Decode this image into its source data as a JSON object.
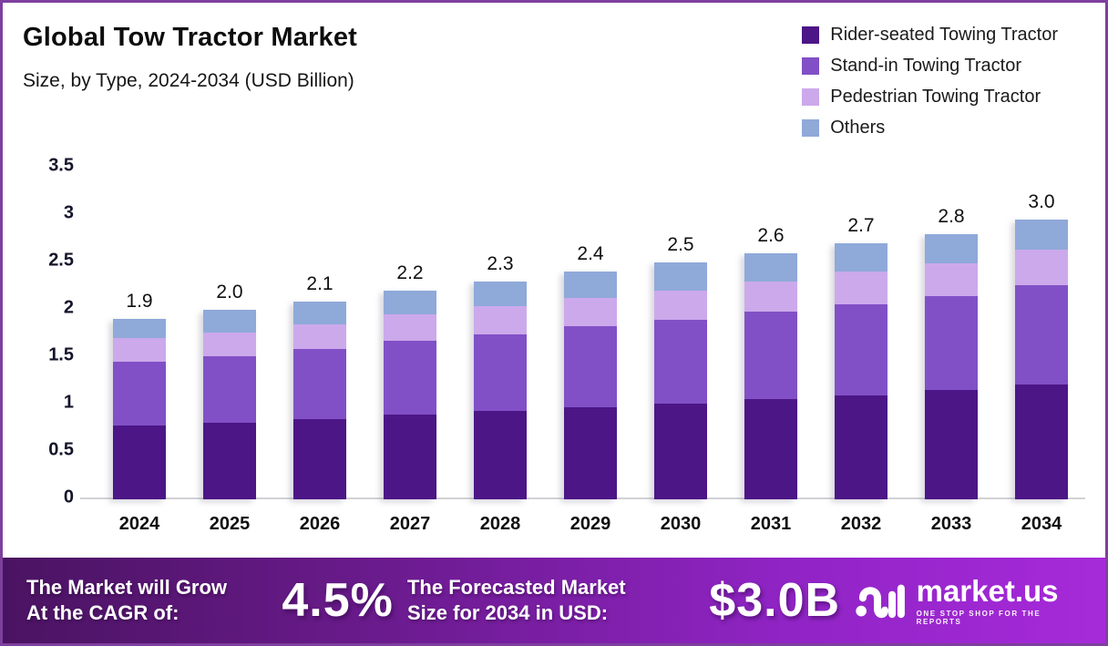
{
  "chart_data": {
    "type": "bar",
    "stacked": true,
    "title": "Global Tow Tractor Market",
    "subtitle": "Size, by Type, 2024-2034 (USD Billion)",
    "categories": [
      "2024",
      "2025",
      "2026",
      "2027",
      "2028",
      "2029",
      "2030",
      "2031",
      "2032",
      "2033",
      "2034"
    ],
    "series": [
      {
        "key": "rider-seated",
        "name": "Rider-seated Towing Tractor",
        "color": "#4C1687",
        "values": [
          0.78,
          0.81,
          0.85,
          0.89,
          0.93,
          0.97,
          1.01,
          1.06,
          1.1,
          1.15,
          1.21
        ]
      },
      {
        "key": "stand-in",
        "name": "Stand-in Towing Tractor",
        "color": "#8150C6",
        "values": [
          0.67,
          0.7,
          0.74,
          0.78,
          0.81,
          0.85,
          0.88,
          0.92,
          0.96,
          1.0,
          1.05
        ]
      },
      {
        "key": "pedestrian",
        "name": "Pedestrian Towing Tractor",
        "color": "#CCA9EB",
        "values": [
          0.25,
          0.25,
          0.26,
          0.28,
          0.3,
          0.3,
          0.31,
          0.32,
          0.34,
          0.34,
          0.37
        ]
      },
      {
        "key": "others",
        "name": "Others",
        "color": "#8FA9D9",
        "values": [
          0.2,
          0.24,
          0.24,
          0.25,
          0.26,
          0.28,
          0.3,
          0.3,
          0.3,
          0.31,
          0.32
        ]
      }
    ],
    "total_labels": [
      "1.9",
      "2.0",
      "2.1",
      "2.2",
      "2.3",
      "2.4",
      "2.5",
      "2.6",
      "2.7",
      "2.8",
      "3.0"
    ],
    "yticks": [
      "3.5",
      "3",
      "2.5",
      "2",
      "1.5",
      "1",
      "0.5",
      "0"
    ],
    "ylim": [
      0,
      3.5
    ],
    "grid": false,
    "legend_position": "top-right"
  },
  "banner": {
    "cagr_line1": "The Market will Grow",
    "cagr_line2": "At the CAGR of:",
    "cagr_value": "4.5%",
    "forecast_line1": "The Forecasted Market",
    "forecast_line2": "Size for 2034 in USD:",
    "forecast_value": "$3.0B",
    "brand": "market.us",
    "brand_tagline": "ONE STOP SHOP FOR THE REPORTS",
    "gradient_left": "#4a1361",
    "gradient_right": "#a62ad9"
  },
  "frame": {
    "border_color": "#7e3f9e"
  }
}
